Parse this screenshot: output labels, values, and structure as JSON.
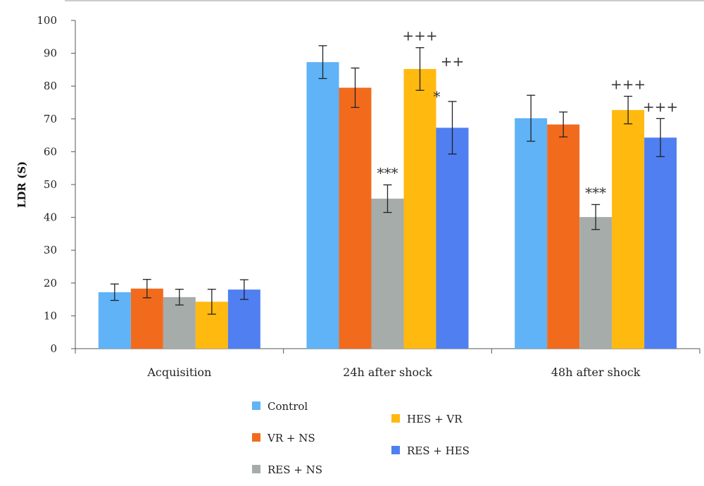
{
  "chart_data": {
    "type": "bar",
    "title": "",
    "xlabel": "",
    "ylabel": "LDR (S)",
    "ylim": [
      0,
      100
    ],
    "yticks": [
      0,
      10,
      20,
      30,
      40,
      50,
      60,
      70,
      80,
      90,
      100
    ],
    "grid": false,
    "legend_position": "bottom",
    "categories": [
      "Acquisition",
      "24h after shock",
      "48h after shock"
    ],
    "series": [
      {
        "name": "Control",
        "color": "#5FB3F6",
        "values": [
          17.2,
          87.3,
          70.2
        ],
        "errors": [
          2.5,
          5.0,
          7.0
        ]
      },
      {
        "name": "VR + NS",
        "color": "#F26B1D",
        "values": [
          18.3,
          79.5,
          68.3
        ],
        "errors": [
          2.8,
          6.0,
          3.8
        ]
      },
      {
        "name": "RES + NS",
        "color": "#A5ACAA",
        "values": [
          15.7,
          45.7,
          40.1
        ],
        "errors": [
          2.4,
          4.2,
          3.8
        ]
      },
      {
        "name": "HES + VR",
        "color": "#FFB90F",
        "values": [
          14.3,
          85.2,
          72.7
        ],
        "errors": [
          3.8,
          6.5,
          4.2
        ]
      },
      {
        "name": "RES + HES",
        "color": "#4F7FF0",
        "values": [
          18.0,
          67.3,
          64.3
        ],
        "errors": [
          3.0,
          8.0,
          5.8
        ]
      }
    ],
    "annotations": [
      {
        "category": 1,
        "series": 2,
        "text": "***"
      },
      {
        "category": 1,
        "series": 3,
        "text": "+++"
      },
      {
        "category": 1,
        "series": 4,
        "text": "*"
      },
      {
        "category": 1,
        "series": 4,
        "text": "++"
      },
      {
        "category": 2,
        "series": 2,
        "text": "***"
      },
      {
        "category": 2,
        "series": 3,
        "text": "+++"
      },
      {
        "category": 2,
        "series": 4,
        "text": "+++"
      }
    ]
  }
}
